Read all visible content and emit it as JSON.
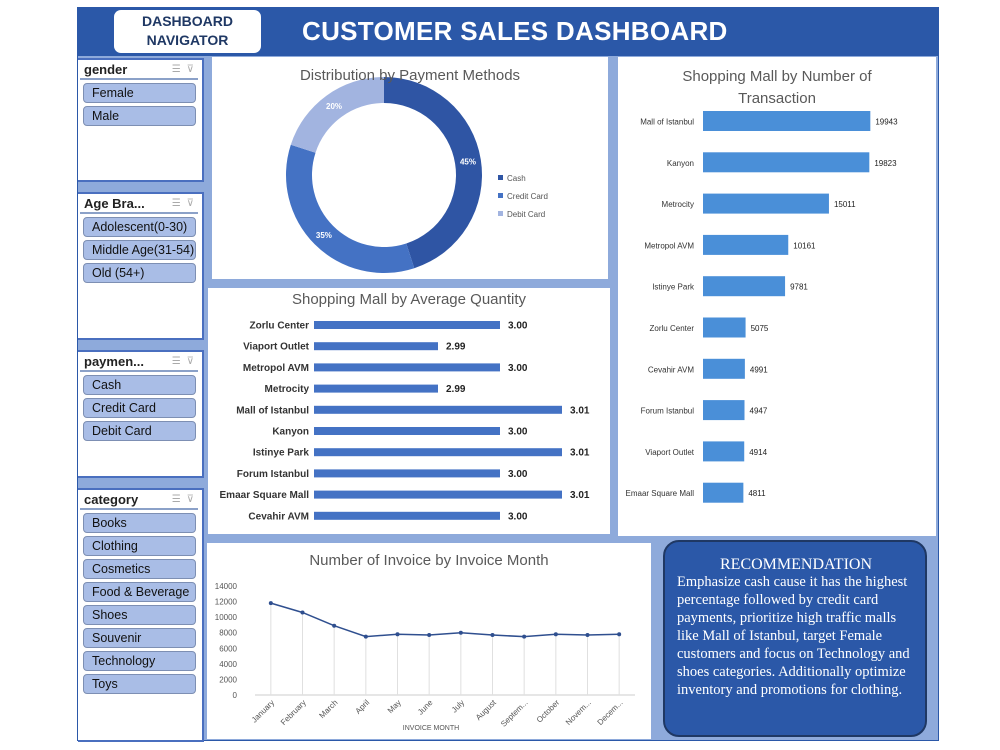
{
  "header": {
    "navigator_label": "DASHBOARD NAVIGATOR",
    "title": "CUSTOMER SALES DASHBOARD",
    "color": "#2b58a8"
  },
  "slicers": [
    {
      "title": "gender",
      "items": [
        "Female",
        "Male"
      ]
    },
    {
      "title": "Age Bra...",
      "items": [
        "Adolescent(0-30)",
        "Middle Age(31-54)",
        "Old (54+)"
      ]
    },
    {
      "title": "paymen...",
      "items": [
        "Cash",
        "Credit Card",
        "Debit Card"
      ]
    },
    {
      "title": "category",
      "items": [
        "Books",
        "Clothing",
        "Cosmetics",
        "Food & Beverage",
        "Shoes",
        "Souvenir",
        "Technology",
        "Toys"
      ]
    }
  ],
  "chart_data": [
    {
      "type": "pie",
      "title": "Distribution by Payment Methods",
      "categories": [
        "Cash",
        "Credit Card",
        "Debit Card"
      ],
      "values": [
        45,
        35,
        20
      ],
      "labels": [
        "45%",
        "35%",
        "20%"
      ],
      "colors": [
        "#2f55a4",
        "#4472c4",
        "#a2b4e0"
      ],
      "legend": "right"
    },
    {
      "type": "bar",
      "orientation": "horizontal",
      "title": "Shopping Mall by Average Quantity",
      "categories": [
        "Zorlu Center",
        "Viaport Outlet",
        "Metropol AVM",
        "Metrocity",
        "Mall of Istanbul",
        "Kanyon",
        "Istinye Park",
        "Forum Istanbul",
        "Emaar Square Mall",
        "Cevahir AVM"
      ],
      "values": [
        3.0,
        2.99,
        3.0,
        2.99,
        3.01,
        3.0,
        3.01,
        3.0,
        3.01,
        3.0
      ],
      "labels": [
        "3.00",
        "2.99",
        "3.00",
        "2.99",
        "3.01",
        "3.00",
        "3.01",
        "3.00",
        "3.01",
        "3.00"
      ],
      "color": "#4472c4"
    },
    {
      "type": "bar",
      "orientation": "horizontal",
      "title": "Shopping Mall by Number of Transaction",
      "categories": [
        "Mall of Istanbul",
        "Kanyon",
        "Metrocity",
        "Metropol AVM",
        "Istinye Park",
        "Zorlu Center",
        "Cevahir AVM",
        "Forum Istanbul",
        "Viaport Outlet",
        "Emaar Square Mall"
      ],
      "values": [
        19943,
        19823,
        15011,
        10161,
        9781,
        5075,
        4991,
        4947,
        4914,
        4811
      ],
      "color": "#4a8fd8"
    },
    {
      "type": "line",
      "title": "Number of Invoice by Invoice Month",
      "xlabel": "INVOICE MONTH",
      "categories": [
        "January",
        "February",
        "March",
        "April",
        "May",
        "June",
        "July",
        "August",
        "Septem...",
        "October",
        "Novem...",
        "Decem..."
      ],
      "values": [
        11800,
        10600,
        8900,
        7500,
        7800,
        7700,
        8000,
        7700,
        7500,
        7800,
        7700,
        7800
      ],
      "ylim": [
        0,
        14000
      ],
      "yticks": [
        "0",
        "2000",
        "4000",
        "6000",
        "8000",
        "10000",
        "12000",
        "14000"
      ],
      "color": "#2f4f8f",
      "grid": "vertical"
    }
  ],
  "recommendation": {
    "title": "RECOMMENDATION",
    "body": "Emphasize cash cause it has the highest percentage followed by credit card payments, prioritize high traffic malls like Mall of Istanbul, target Female customers and focus on Technology and shoes categories. Additionally optimize inventory and promotions for clothing."
  }
}
